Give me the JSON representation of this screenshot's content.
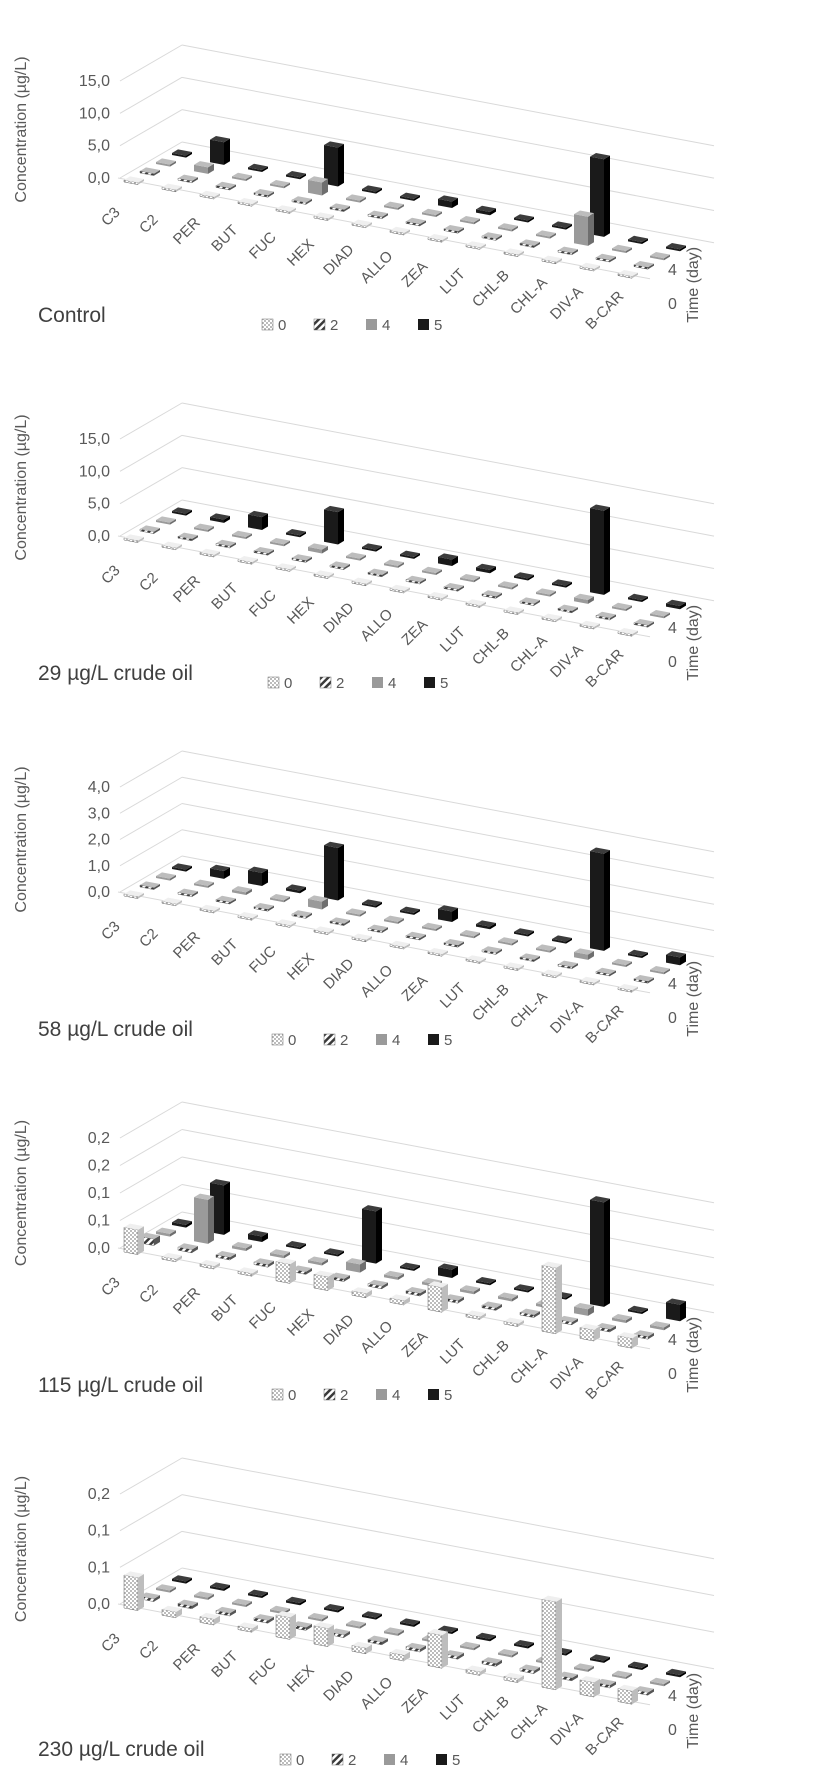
{
  "chart_data": [
    {
      "type": "bar",
      "caption": "Control",
      "ylabel": "Concentration (µg/L)",
      "depth_label": "Time (day)",
      "depth_ticks": [
        "4",
        "0"
      ],
      "yticks": [
        "0,0",
        "5,0",
        "10,0",
        "15,0"
      ],
      "ylim": [
        0,
        15
      ],
      "categories": [
        "C3",
        "C2",
        "PER",
        "BUT",
        "FUC",
        "HEX",
        "DIAD",
        "ALLO",
        "ZEA",
        "LUT",
        "CHL-B",
        "CHL-A",
        "DIV-A",
        "B-CAR"
      ],
      "series": [
        {
          "name": "0",
          "values": [
            0.05,
            0.05,
            0.05,
            0.05,
            0.05,
            0.05,
            0.05,
            0.05,
            0.05,
            0.05,
            0.05,
            0.05,
            0.1,
            0.1
          ]
        },
        {
          "name": "2",
          "values": [
            0.1,
            0.1,
            0.1,
            0.1,
            0.1,
            0.1,
            0.1,
            0.1,
            0.1,
            0.1,
            0.1,
            0.1,
            0.1,
            0.1
          ]
        },
        {
          "name": "4",
          "values": [
            0.2,
            1.0,
            0.1,
            0.1,
            2.0,
            0.1,
            0.1,
            0.1,
            0.1,
            0.1,
            0.1,
            4.5,
            0.1,
            0.1
          ]
        },
        {
          "name": "5",
          "values": [
            0.1,
            3.5,
            0.1,
            0.2,
            6.0,
            0.1,
            0.1,
            1.0,
            0.5,
            0.1,
            0.1,
            12.0,
            0.1,
            0.1
          ]
        }
      ]
    },
    {
      "type": "bar",
      "caption": "29 µg/L crude oil",
      "ylabel": "Concentration (µg/L)",
      "depth_label": "Time (day)",
      "depth_ticks": [
        "4",
        "0"
      ],
      "yticks": [
        "0,0",
        "5,0",
        "10,0",
        "15,0"
      ],
      "ylim": [
        0,
        15
      ],
      "categories": [
        "C3",
        "C2",
        "PER",
        "BUT",
        "FUC",
        "HEX",
        "DIAD",
        "ALLO",
        "ZEA",
        "LUT",
        "CHL-B",
        "CHL-A",
        "DIV-A",
        "B-CAR"
      ],
      "series": [
        {
          "name": "0",
          "values": [
            0.05,
            0.05,
            0.05,
            0.05,
            0.05,
            0.05,
            0.05,
            0.05,
            0.05,
            0.05,
            0.05,
            0.05,
            0.1,
            0.1
          ]
        },
        {
          "name": "2",
          "values": [
            0.1,
            0.1,
            0.1,
            0.1,
            0.1,
            0.1,
            0.1,
            0.1,
            0.1,
            0.1,
            0.1,
            0.1,
            0.1,
            0.1
          ]
        },
        {
          "name": "4",
          "values": [
            0.1,
            0.1,
            0.2,
            0.1,
            0.6,
            0.1,
            0.1,
            0.1,
            0.1,
            0.1,
            0.1,
            0.6,
            0.1,
            0.1
          ]
        },
        {
          "name": "5",
          "values": [
            0.1,
            0.5,
            2.0,
            0.2,
            5.0,
            0.1,
            0.1,
            1.0,
            0.5,
            0.1,
            0.1,
            13.0,
            0.1,
            0.5
          ]
        }
      ]
    },
    {
      "type": "bar",
      "caption": "58 µg/L crude oil",
      "ylabel": "Concentration (µg/L)",
      "depth_label": "Time (day)",
      "depth_ticks": [
        "4",
        "0"
      ],
      "yticks": [
        "0,0",
        "1,0",
        "2,0",
        "3,0",
        "4,0"
      ],
      "ylim": [
        0,
        4
      ],
      "categories": [
        "C3",
        "C2",
        "PER",
        "BUT",
        "FUC",
        "HEX",
        "DIAD",
        "ALLO",
        "ZEA",
        "LUT",
        "CHL-B",
        "CHL-A",
        "DIV-A",
        "B-CAR"
      ],
      "series": [
        {
          "name": "0",
          "values": [
            0.02,
            0.02,
            0.02,
            0.02,
            0.02,
            0.02,
            0.02,
            0.02,
            0.02,
            0.02,
            0.02,
            0.02,
            0.03,
            0.03
          ]
        },
        {
          "name": "2",
          "values": [
            0.05,
            0.05,
            0.05,
            0.05,
            0.05,
            0.05,
            0.05,
            0.05,
            0.05,
            0.05,
            0.05,
            0.05,
            0.05,
            0.05
          ]
        },
        {
          "name": "4",
          "values": [
            0.05,
            0.05,
            0.1,
            0.05,
            0.3,
            0.05,
            0.05,
            0.05,
            0.05,
            0.05,
            0.05,
            0.2,
            0.05,
            0.05
          ]
        },
        {
          "name": "5",
          "values": [
            0.05,
            0.3,
            0.5,
            0.1,
            2.0,
            0.05,
            0.05,
            0.4,
            0.1,
            0.05,
            0.05,
            3.7,
            0.05,
            0.3
          ]
        }
      ]
    },
    {
      "type": "bar",
      "caption": "115 µg/L crude oil",
      "ylabel": "Concentration (µg/L)",
      "depth_label": "Time (day)",
      "depth_ticks": [
        "4",
        "0"
      ],
      "yticks": [
        "0,0",
        "0,1",
        "0,1",
        "0,2",
        "0,2"
      ],
      "ylim": [
        0,
        0.2
      ],
      "categories": [
        "C3",
        "C2",
        "PER",
        "BUT",
        "FUC",
        "HEX",
        "DIAD",
        "ALLO",
        "ZEA",
        "LUT",
        "CHL-B",
        "CHL-A",
        "DIV-A",
        "B-CAR"
      ],
      "series": [
        {
          "name": "0",
          "values": [
            0.045,
            0.005,
            0.005,
            0.005,
            0.035,
            0.025,
            0.008,
            0.008,
            0.045,
            0.005,
            0.005,
            0.12,
            0.02,
            0.018
          ]
        },
        {
          "name": "2",
          "values": [
            0.012,
            0.006,
            0.005,
            0.005,
            0.005,
            0.005,
            0.005,
            0.005,
            0.005,
            0.005,
            0.005,
            0.005,
            0.005,
            0.005
          ]
        },
        {
          "name": "4",
          "values": [
            0.005,
            0.08,
            0.005,
            0.005,
            0.005,
            0.015,
            0.005,
            0.005,
            0.005,
            0.005,
            0.005,
            0.012,
            0.005,
            0.005
          ]
        },
        {
          "name": "5",
          "values": [
            0.005,
            0.09,
            0.01,
            0.003,
            0.003,
            0.095,
            0.003,
            0.015,
            0.003,
            0.003,
            0.003,
            0.19,
            0.003,
            0.03
          ]
        }
      ]
    },
    {
      "type": "bar",
      "caption": "230 µg/L crude oil",
      "ylabel": "Concentration (µg/L)",
      "depth_label": "Time (day)",
      "depth_ticks": [
        "4",
        "0"
      ],
      "yticks": [
        "0,0",
        "0,1",
        "0,1",
        "0,2"
      ],
      "ylim": [
        0,
        0.15
      ],
      "categories": [
        "C3",
        "C2",
        "PER",
        "BUT",
        "FUC",
        "HEX",
        "DIAD",
        "ALLO",
        "ZEA",
        "LUT",
        "CHL-B",
        "CHL-A",
        "DIV-A",
        "B-CAR"
      ],
      "series": [
        {
          "name": "0",
          "values": [
            0.045,
            0.008,
            0.008,
            0.005,
            0.03,
            0.025,
            0.008,
            0.008,
            0.045,
            0.005,
            0.005,
            0.12,
            0.02,
            0.018
          ]
        },
        {
          "name": "2",
          "values": [
            0.004,
            0.004,
            0.004,
            0.004,
            0.004,
            0.004,
            0.004,
            0.004,
            0.004,
            0.004,
            0.004,
            0.004,
            0.004,
            0.004
          ]
        },
        {
          "name": "4",
          "values": [
            0.003,
            0.003,
            0.003,
            0.003,
            0.003,
            0.003,
            0.003,
            0.003,
            0.003,
            0.003,
            0.003,
            0.003,
            0.003,
            0.003
          ]
        },
        {
          "name": "5",
          "values": [
            0.003,
            0.003,
            0.003,
            0.003,
            0.003,
            0.003,
            0.003,
            0.003,
            0.003,
            0.003,
            0.003,
            0.003,
            0.003,
            0.003
          ]
        }
      ]
    }
  ],
  "colors": {
    "series_0": "#d9d9d9",
    "series_2": "#7f7f7f",
    "series_4": "#9a9a9a",
    "series_5": "#1a1a1a",
    "grid": "#d9d9d9",
    "text": "#595959"
  }
}
